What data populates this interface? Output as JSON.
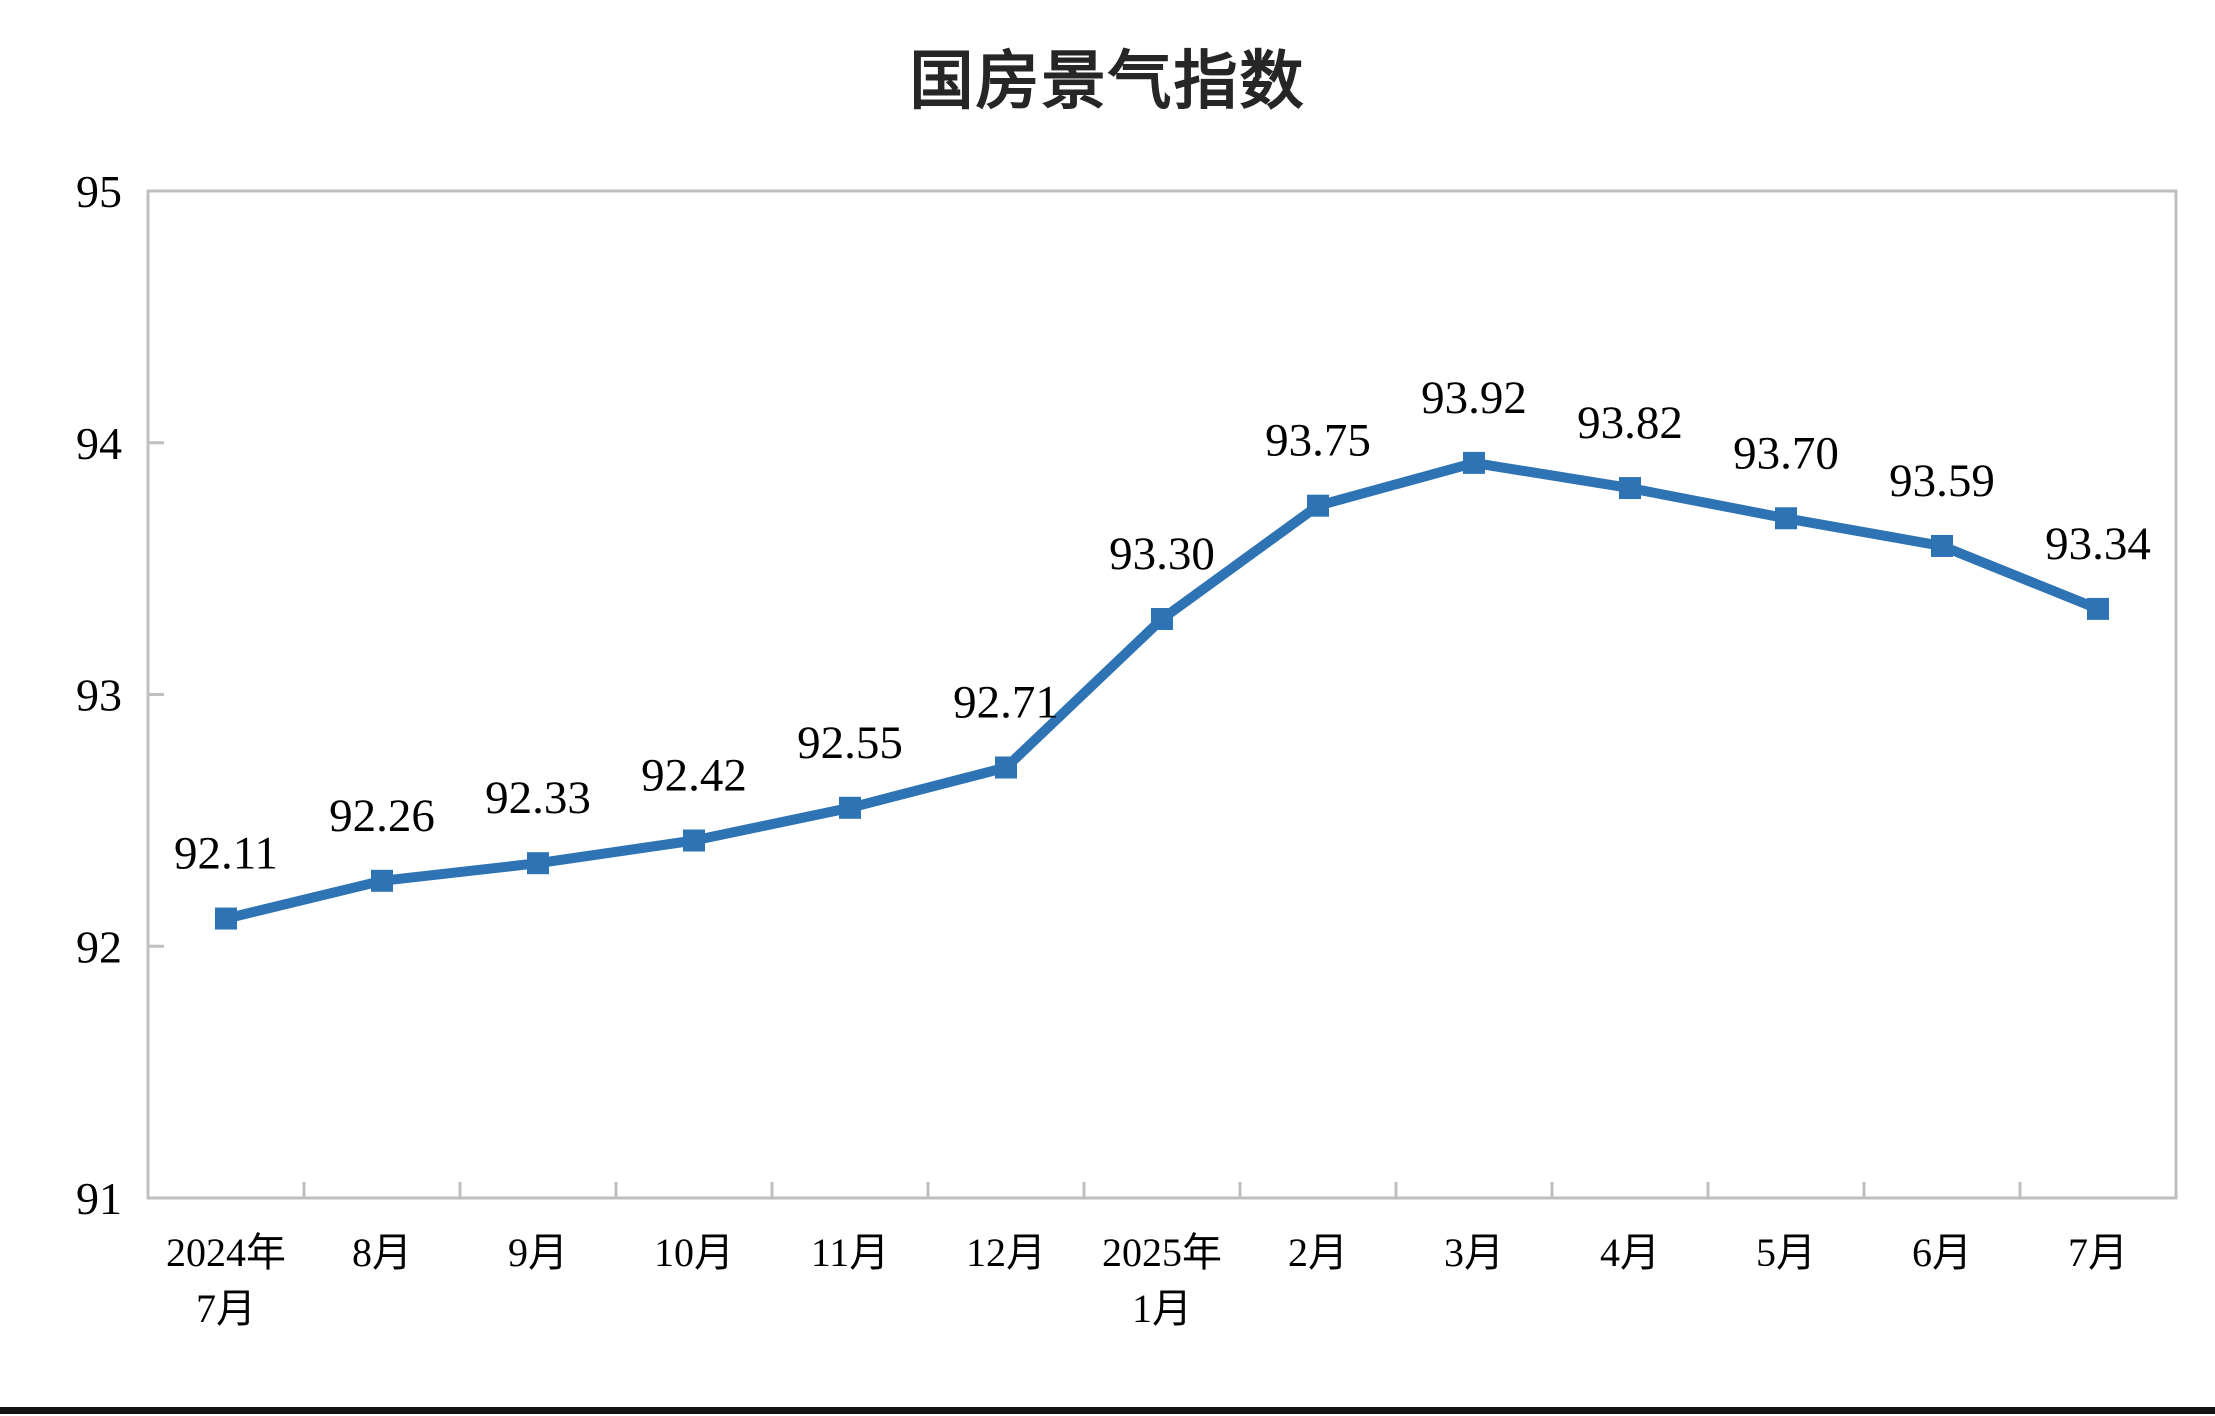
{
  "chart_data": {
    "type": "line",
    "title": "国房景气指数",
    "categories": [
      "2024年\n7月",
      "8月",
      "9月",
      "10月",
      "11月",
      "12月",
      "2025年\n1月",
      "2月",
      "3月",
      "4月",
      "5月",
      "6月",
      "7月"
    ],
    "series": [
      {
        "name": "国房景气指数",
        "values": [
          92.11,
          92.26,
          92.33,
          92.42,
          92.55,
          92.71,
          93.3,
          93.75,
          93.92,
          93.82,
          93.7,
          93.59,
          93.34
        ],
        "data_labels": [
          "92.11",
          "92.26",
          "92.33",
          "92.42",
          "92.55",
          "92.71",
          "93.30",
          "93.75",
          "93.92",
          "93.82",
          "93.70",
          "93.59",
          "93.34"
        ]
      }
    ],
    "xlabel": "",
    "ylabel": "",
    "ylim": [
      91,
      95
    ],
    "ytick_labels": [
      "91",
      "92",
      "93",
      "94",
      "95"
    ],
    "grid": false,
    "legend_position": "none",
    "line_color": "#2E74B5",
    "marker_shape": "square",
    "axis_color": "#BFBFBF",
    "label_text_color": "#000000",
    "title_color": "#262626",
    "bottom_bar_color": "#141414"
  }
}
